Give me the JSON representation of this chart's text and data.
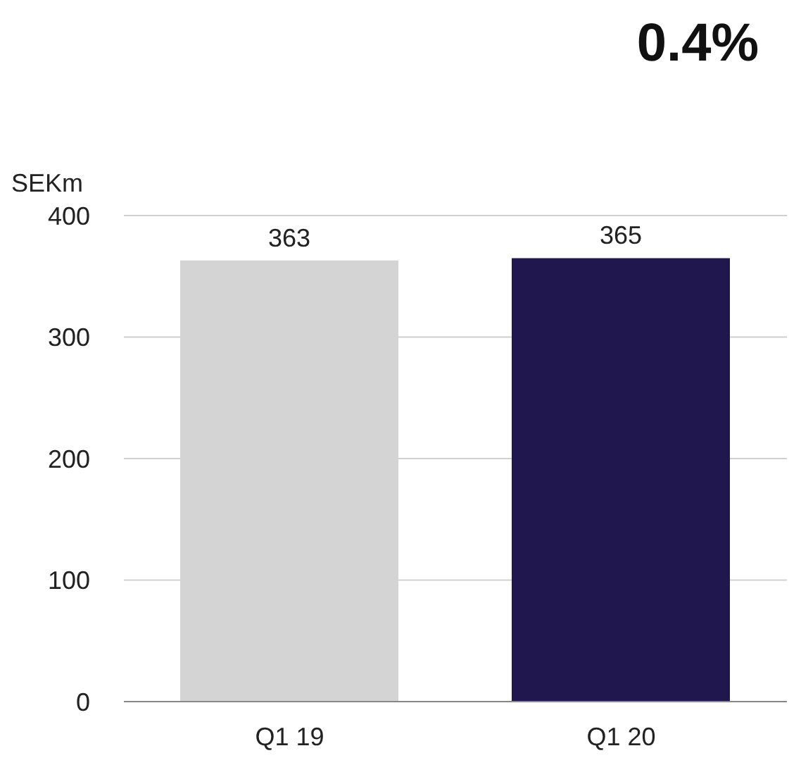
{
  "chart_data": {
    "type": "bar",
    "title": "0.4%",
    "ylabel": "SEKm",
    "categories": [
      "Q1 19",
      "Q1 20"
    ],
    "values": [
      363,
      365
    ],
    "colors": [
      "#d4d4d4",
      "#20174f"
    ],
    "ylim": [
      0,
      400
    ],
    "yticks": [
      0,
      100,
      200,
      300,
      400
    ],
    "grid": "y",
    "data_labels": true
  }
}
